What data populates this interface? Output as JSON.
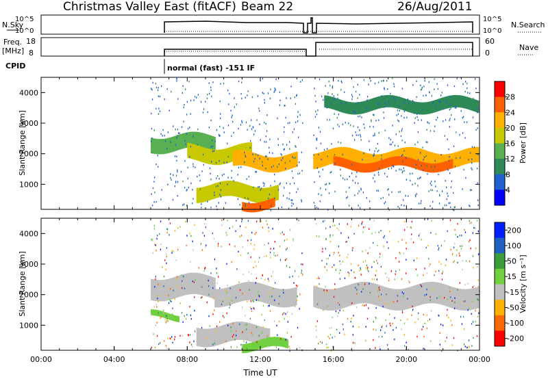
{
  "header": {
    "station": "Christmas Valley East (fitACF)",
    "beam": "Beam 22",
    "date": "26/Aug/2011"
  },
  "strip_labels": {
    "nsky": "N.Sky",
    "nsky_top": "10^5",
    "nsky_bottom": "10^0",
    "nsearch": "N.Search",
    "nsearch_top": "10^5",
    "nsearch_bottom": "10^0",
    "freq_line1": "Freq.",
    "freq_line2": "[MHz]",
    "freq_top": "18",
    "freq_bottom": "8",
    "nave": "Nave",
    "nave_top": "60",
    "nave_bottom": "0",
    "cpid": "CPID",
    "mode": "normal (fast) -151 IF"
  },
  "colors": {
    "power": [
      "#0000ff",
      "#2060d0",
      "#2e8b57",
      "#58b050",
      "#c8c800",
      "#ffb000",
      "#ff6000",
      "#ff0000"
    ],
    "velocity": [
      "#ff0000",
      "#ff6a00",
      "#ffb000",
      "#c0c0c0",
      "#70d040",
      "#3a9e3a",
      "#2060c0",
      "#0020ff"
    ]
  },
  "chart_data": [
    {
      "type": "heatmap",
      "name": "power-panel",
      "ylabel": "Slant Range [km]",
      "xlabel": "",
      "xlim": [
        0,
        24
      ],
      "ylim": [
        180,
        4500
      ],
      "yticks": [
        "1000",
        "2000",
        "3000",
        "4000"
      ],
      "colorbar": {
        "label": "Power [dB]",
        "ticks": [
          "4",
          "8",
          "12",
          "16",
          "20",
          "24",
          "28"
        ],
        "range": [
          0,
          32
        ]
      },
      "bands": [
        {
          "t": [
            6.0,
            9.5
          ],
          "range": [
            2100,
            2600
          ],
          "value": 12
        },
        {
          "t": [
            8.0,
            11.5
          ],
          "range": [
            1750,
            2250
          ],
          "value": 16
        },
        {
          "t": [
            10.5,
            14.0
          ],
          "range": [
            1500,
            2000
          ],
          "value": 20
        },
        {
          "t": [
            8.5,
            13.0
          ],
          "range": [
            500,
            1000
          ],
          "value": 16
        },
        {
          "t": [
            11.0,
            12.8
          ],
          "range": [
            200,
            500
          ],
          "value": 24
        },
        {
          "t": [
            14.9,
            23.9
          ],
          "range": [
            1600,
            2100
          ],
          "value": 20
        },
        {
          "t": [
            16.0,
            22.5
          ],
          "range": [
            1500,
            1800
          ],
          "value": 26
        },
        {
          "t": [
            15.5,
            23.9
          ],
          "range": [
            3400,
            3800
          ],
          "value": 8
        }
      ]
    },
    {
      "type": "heatmap",
      "name": "velocity-panel",
      "ylabel": "Slant Range [km]",
      "xlabel": "Time UT",
      "xlim": [
        0,
        24
      ],
      "ylim": [
        180,
        4500
      ],
      "yticks": [
        "1000",
        "2000",
        "3000",
        "4000"
      ],
      "xticks": [
        "00:00",
        "04:00",
        "08:00",
        "12:00",
        "16:00",
        "20:00",
        "00:00"
      ],
      "colorbar": {
        "label": "Velocity [m s⁻¹]",
        "ticks": [
          "200",
          "100",
          "50",
          "15",
          "-15",
          "-50",
          "-100",
          "-200"
        ]
      },
      "bands": [
        {
          "t": [
            6.0,
            9.5
          ],
          "range": [
            1900,
            2600
          ],
          "value": 0
        },
        {
          "t": [
            9.5,
            14.0
          ],
          "range": [
            1700,
            2300
          ],
          "value": 0
        },
        {
          "t": [
            8.5,
            12.5
          ],
          "range": [
            400,
            1000
          ],
          "value": 0
        },
        {
          "t": [
            14.9,
            23.9
          ],
          "range": [
            1600,
            2300
          ],
          "value": 0
        },
        {
          "t": [
            6.0,
            7.5
          ],
          "range": [
            1200,
            1400
          ],
          "value": 30
        },
        {
          "t": [
            11.0,
            13.5
          ],
          "range": [
            200,
            500
          ],
          "value": 30
        }
      ]
    }
  ]
}
